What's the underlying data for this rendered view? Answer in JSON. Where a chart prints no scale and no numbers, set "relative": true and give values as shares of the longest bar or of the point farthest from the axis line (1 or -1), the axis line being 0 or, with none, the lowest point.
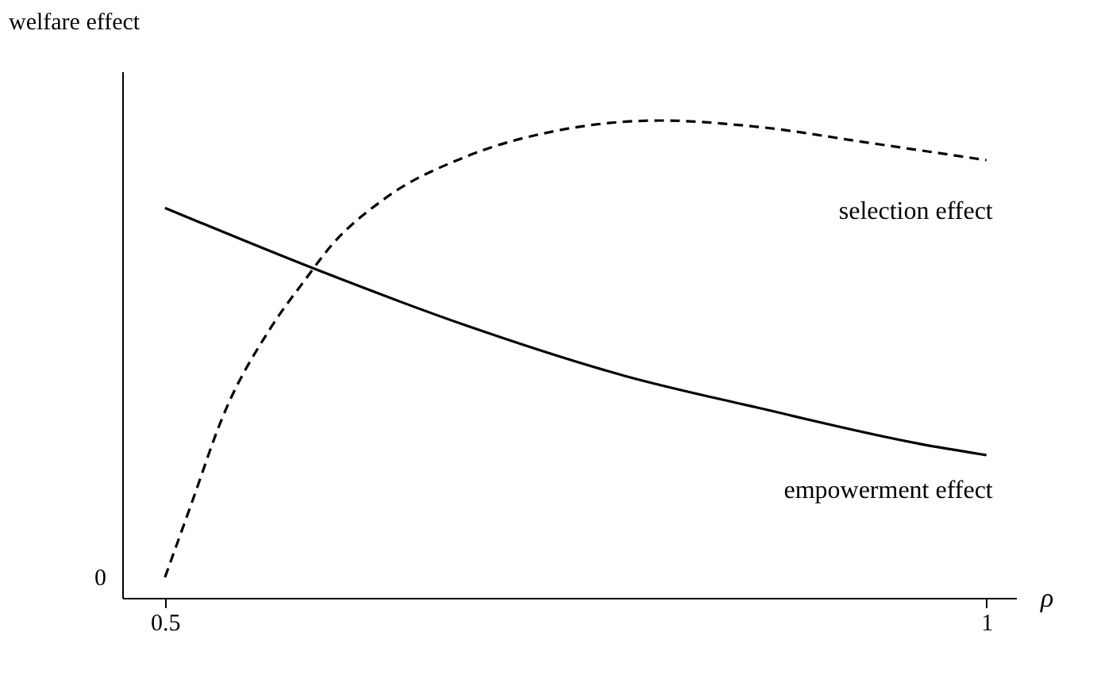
{
  "chart_data": {
    "type": "line",
    "xlabel": "ρ",
    "ylabel": "welfare effect",
    "relative": true,
    "x": [
      0.5,
      0.516,
      0.535,
      0.565,
      0.585,
      0.601,
      0.634,
      0.683,
      0.742,
      0.801,
      0.86,
      0.929,
      1
    ],
    "xlim": [
      0.474,
      1.018
    ],
    "xticks": [
      0.5,
      1
    ],
    "annotations": [
      "0"
    ],
    "series": [
      {
        "name": "selection effect",
        "color": "#000000",
        "line_style": "dashed",
        "values": [
          0.043,
          0.196,
          0.378,
          0.569,
          0.665,
          0.737,
          0.837,
          0.924,
          0.981,
          1,
          0.987,
          0.953,
          0.917
        ]
      },
      {
        "name": "empowerment effect",
        "color": "#000000",
        "line_style": "solid",
        "x": [
          0.5,
          0.592,
          0.683,
          0.781,
          0.86,
          0.959,
          1
        ],
        "values": [
          0.817,
          0.688,
          0.571,
          0.464,
          0.399,
          0.323,
          0.299
        ]
      }
    ],
    "grid": false
  }
}
